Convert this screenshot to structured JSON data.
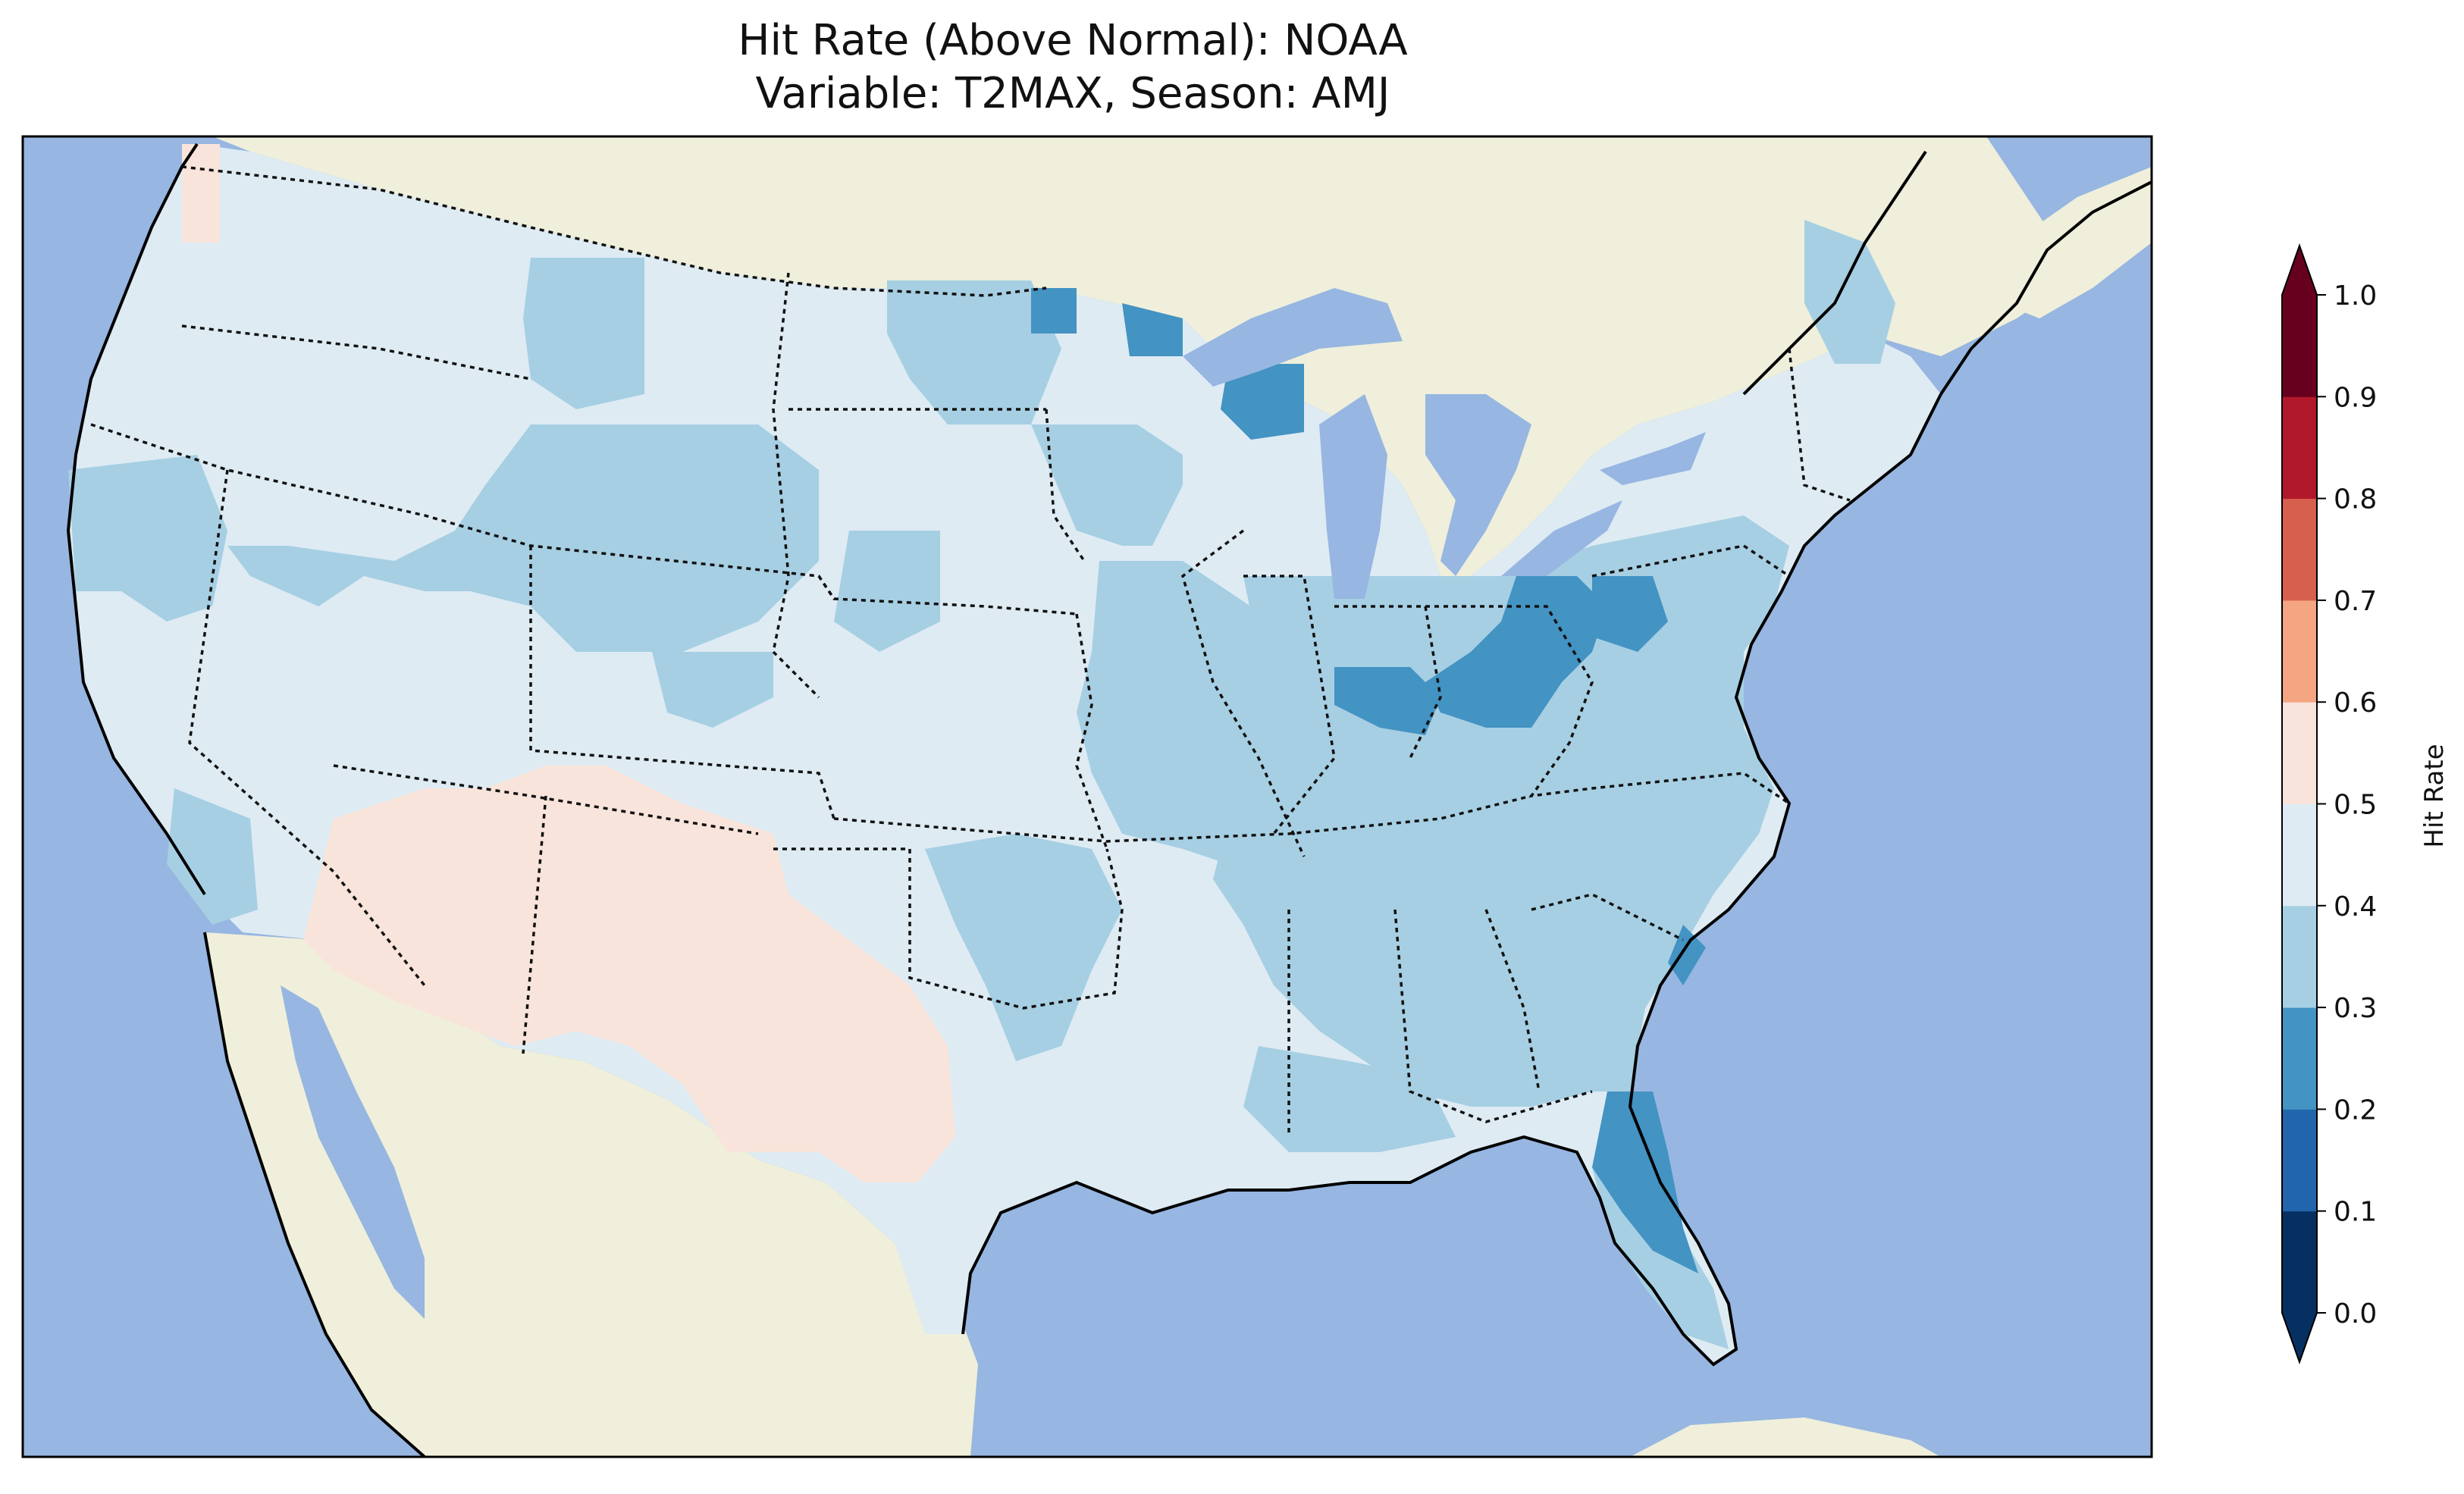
{
  "title": {
    "line1": "Hit Rate (Above Normal): NOAA",
    "line2": "Variable: T2MAX, Season: AMJ"
  },
  "colorbar": {
    "label": "Hit Rate",
    "ticks": [
      "0.0",
      "0.1",
      "0.2",
      "0.3",
      "0.4",
      "0.5",
      "0.6",
      "0.7",
      "0.8",
      "0.9",
      "1.0"
    ],
    "colors": [
      "#053061",
      "#2166ac",
      "#4393c3",
      "#a6cfe3",
      "#deebf3",
      "#f9e4db",
      "#f4a582",
      "#d6604d",
      "#b2182b",
      "#67001f"
    ],
    "extend": "both"
  },
  "map": {
    "ocean_color": "#97b6e1",
    "land_color": "#efefdb",
    "region": "Contiguous United States"
  }
}
